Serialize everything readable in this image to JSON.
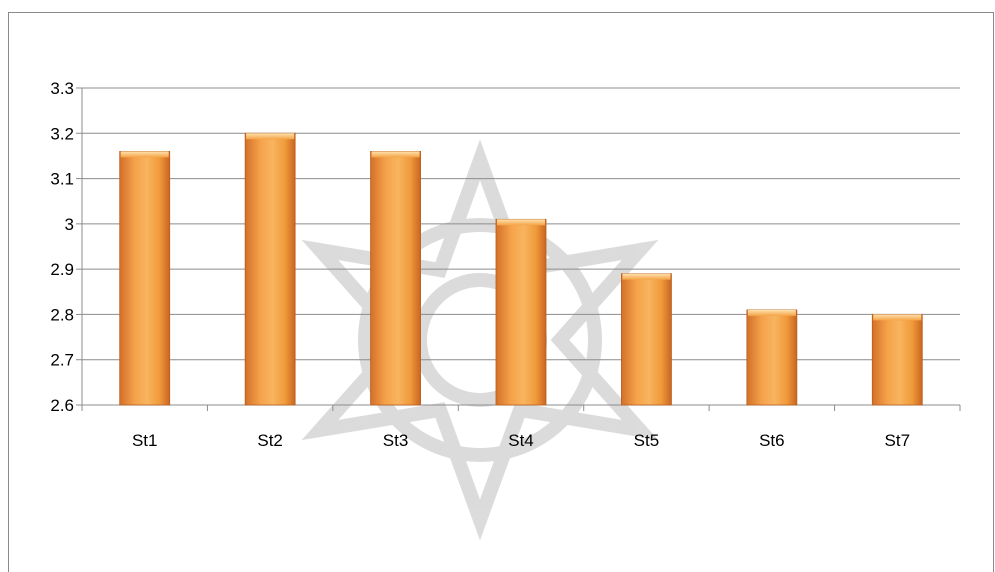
{
  "chart_data": {
    "type": "bar",
    "title": "",
    "xlabel": "",
    "ylabel": "",
    "categories": [
      "St1",
      "St2",
      "St3",
      "St4",
      "St5",
      "St6",
      "St7"
    ],
    "values": [
      3.16,
      3.2,
      3.16,
      3.01,
      2.89,
      2.81,
      2.8
    ],
    "ylim": [
      2.6,
      3.3
    ],
    "yticks": [
      "2.6",
      "2.7",
      "2.8",
      "2.9",
      "3",
      "3.1",
      "3.2",
      "3.3"
    ],
    "grid": true,
    "legend": "none",
    "bar_color": "#f09a3a",
    "bar_color_dark": "#d8742a",
    "bar_color_light": "#f7b565",
    "watermark_color": "#d9d9d9"
  }
}
